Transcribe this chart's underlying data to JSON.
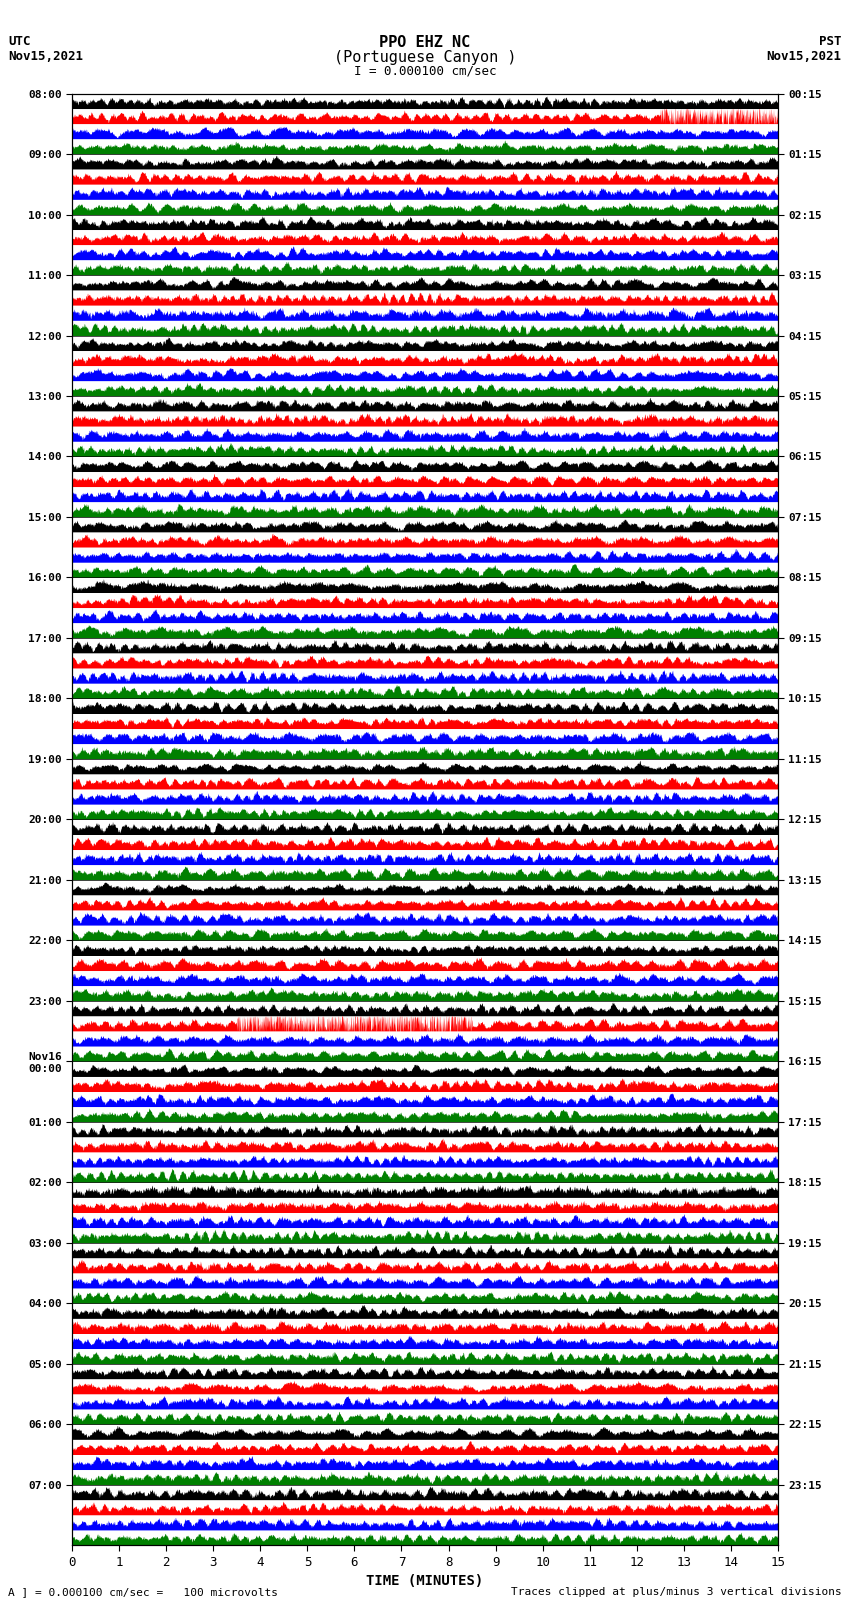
{
  "title_line1": "PPO EHZ NC",
  "title_line2": "(Portuguese Canyon )",
  "title_line3": "I = 0.000100 cm/sec",
  "top_left_line1": "UTC",
  "top_left_line2": "Nov15,2021",
  "top_right_line1": "PST",
  "top_right_line2": "Nov15,2021",
  "xlabel": "TIME (MINUTES)",
  "bottom_left_text": "A ] = 0.000100 cm/sec =   100 microvolts",
  "bottom_right_text": "Traces clipped at plus/minus 3 vertical divisions",
  "utc_times": [
    "08:00",
    "09:00",
    "10:00",
    "11:00",
    "12:00",
    "13:00",
    "14:00",
    "15:00",
    "16:00",
    "17:00",
    "18:00",
    "19:00",
    "20:00",
    "21:00",
    "22:00",
    "23:00",
    "Nov16\n00:00",
    "01:00",
    "02:00",
    "03:00",
    "04:00",
    "05:00",
    "06:00",
    "07:00"
  ],
  "pst_times": [
    "00:15",
    "01:15",
    "02:15",
    "03:15",
    "04:15",
    "05:15",
    "06:15",
    "07:15",
    "08:15",
    "09:15",
    "10:15",
    "11:15",
    "12:15",
    "13:15",
    "14:15",
    "15:15",
    "16:15",
    "17:15",
    "18:15",
    "19:15",
    "20:15",
    "21:15",
    "22:15",
    "23:15"
  ],
  "n_rows": 24,
  "n_subrows": 4,
  "colors": [
    "#000000",
    "#ff0000",
    "#0000ff",
    "#008000"
  ],
  "bg_color": "#ffffff",
  "plot_bg": "#ffffff",
  "xmin": 0,
  "xmax": 15,
  "xticks": [
    0,
    1,
    2,
    3,
    4,
    5,
    6,
    7,
    8,
    9,
    10,
    11,
    12,
    13,
    14,
    15
  ],
  "figwidth": 8.5,
  "figheight": 16.13,
  "dpi": 100
}
